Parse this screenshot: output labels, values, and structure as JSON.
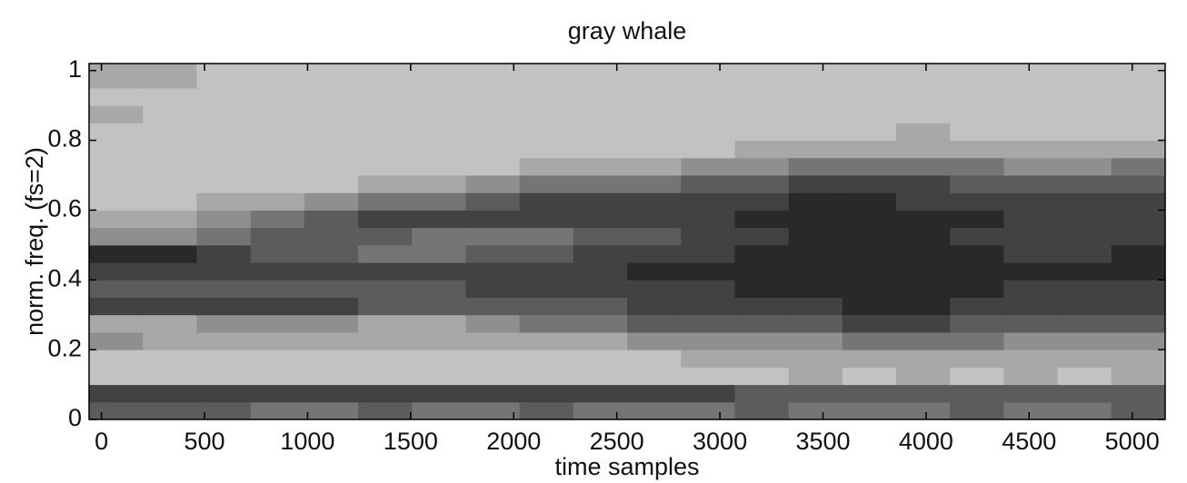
{
  "chart_data": {
    "type": "heatmap",
    "title": "gray whale",
    "xlabel": "time samples",
    "ylabel": "norm. freq. (fs=2)",
    "xlim": [
      -60,
      5160
    ],
    "ylim": [
      0,
      1.02
    ],
    "xticks": [
      0,
      500,
      1000,
      1500,
      2000,
      2500,
      3000,
      3500,
      4000,
      4500,
      5000
    ],
    "yticks": [
      0,
      0.2,
      0.4,
      0.6,
      0.8,
      1
    ],
    "xbins": [
      -60,
      201,
      462,
      723,
      984,
      1245,
      1506,
      1767,
      2028,
      2289,
      2550,
      2811,
      3072,
      3333,
      3594,
      3855,
      4116,
      4377,
      4638,
      4899,
      5160
    ],
    "ybins": [
      0,
      0.05,
      0.1,
      0.15,
      0.2,
      0.25,
      0.3,
      0.35,
      0.4,
      0.45,
      0.5,
      0.55,
      0.6,
      0.65,
      0.7,
      0.75,
      0.8,
      0.85,
      0.9,
      0.95,
      1.02
    ],
    "zlim": [
      0,
      9
    ],
    "z": [
      [
        6,
        6,
        6,
        5,
        5,
        6,
        5,
        5,
        6,
        5,
        5,
        5,
        6,
        5,
        5,
        5,
        6,
        5,
        5,
        6
      ],
      [
        7,
        7,
        7,
        7,
        7,
        7,
        7,
        7,
        7,
        7,
        7,
        7,
        6,
        6,
        6,
        6,
        6,
        6,
        6,
        6
      ],
      [
        2,
        2,
        2,
        2,
        2,
        2,
        2,
        2,
        2,
        2,
        2,
        2,
        2,
        3,
        2,
        3,
        2,
        3,
        2,
        3
      ],
      [
        2,
        2,
        2,
        2,
        2,
        2,
        2,
        2,
        2,
        2,
        2,
        3,
        3,
        3,
        3,
        3,
        3,
        3,
        3,
        3
      ],
      [
        4,
        3,
        3,
        3,
        3,
        3,
        3,
        3,
        3,
        3,
        4,
        4,
        4,
        4,
        5,
        5,
        5,
        4,
        4,
        4
      ],
      [
        3,
        3,
        4,
        4,
        4,
        3,
        3,
        4,
        5,
        5,
        6,
        6,
        6,
        6,
        7,
        7,
        6,
        6,
        6,
        6
      ],
      [
        7,
        7,
        7,
        7,
        7,
        6,
        6,
        6,
        6,
        6,
        7,
        7,
        7,
        7,
        8,
        8,
        7,
        7,
        7,
        7
      ],
      [
        6,
        6,
        6,
        6,
        6,
        6,
        6,
        7,
        7,
        7,
        7,
        7,
        8,
        8,
        8,
        8,
        8,
        7,
        7,
        7
      ],
      [
        7,
        7,
        7,
        7,
        7,
        7,
        7,
        7,
        7,
        7,
        8,
        8,
        8,
        8,
        8,
        8,
        8,
        8,
        8,
        8
      ],
      [
        8,
        8,
        7,
        6,
        6,
        5,
        5,
        6,
        6,
        7,
        7,
        7,
        8,
        8,
        8,
        8,
        8,
        7,
        7,
        8
      ],
      [
        4,
        4,
        5,
        6,
        6,
        6,
        5,
        5,
        5,
        6,
        6,
        7,
        7,
        8,
        8,
        8,
        7,
        7,
        7,
        7
      ],
      [
        3,
        3,
        4,
        5,
        6,
        7,
        7,
        7,
        7,
        7,
        7,
        7,
        8,
        8,
        8,
        8,
        8,
        7,
        7,
        7
      ],
      [
        2,
        2,
        3,
        3,
        4,
        5,
        5,
        6,
        7,
        7,
        7,
        7,
        7,
        8,
        8,
        7,
        7,
        7,
        7,
        7
      ],
      [
        2,
        2,
        2,
        2,
        2,
        3,
        3,
        4,
        5,
        5,
        5,
        6,
        6,
        7,
        7,
        7,
        6,
        6,
        6,
        6
      ],
      [
        2,
        2,
        2,
        2,
        2,
        2,
        2,
        2,
        3,
        3,
        3,
        4,
        4,
        5,
        5,
        5,
        5,
        4,
        4,
        5
      ],
      [
        2,
        2,
        2,
        2,
        2,
        2,
        2,
        2,
        2,
        2,
        2,
        2,
        3,
        3,
        3,
        3,
        3,
        3,
        3,
        3
      ],
      [
        2,
        2,
        2,
        2,
        2,
        2,
        2,
        2,
        2,
        2,
        2,
        2,
        2,
        2,
        2,
        3,
        2,
        2,
        2,
        2
      ],
      [
        3,
        2,
        2,
        2,
        2,
        2,
        2,
        2,
        2,
        2,
        2,
        2,
        2,
        2,
        2,
        2,
        2,
        2,
        2,
        2
      ],
      [
        2,
        2,
        2,
        2,
        2,
        2,
        2,
        2,
        2,
        2,
        2,
        2,
        2,
        2,
        2,
        2,
        2,
        2,
        2,
        2
      ],
      [
        3,
        3,
        2,
        2,
        2,
        2,
        2,
        2,
        2,
        2,
        2,
        2,
        2,
        2,
        2,
        2,
        2,
        2,
        2,
        2
      ]
    ]
  }
}
